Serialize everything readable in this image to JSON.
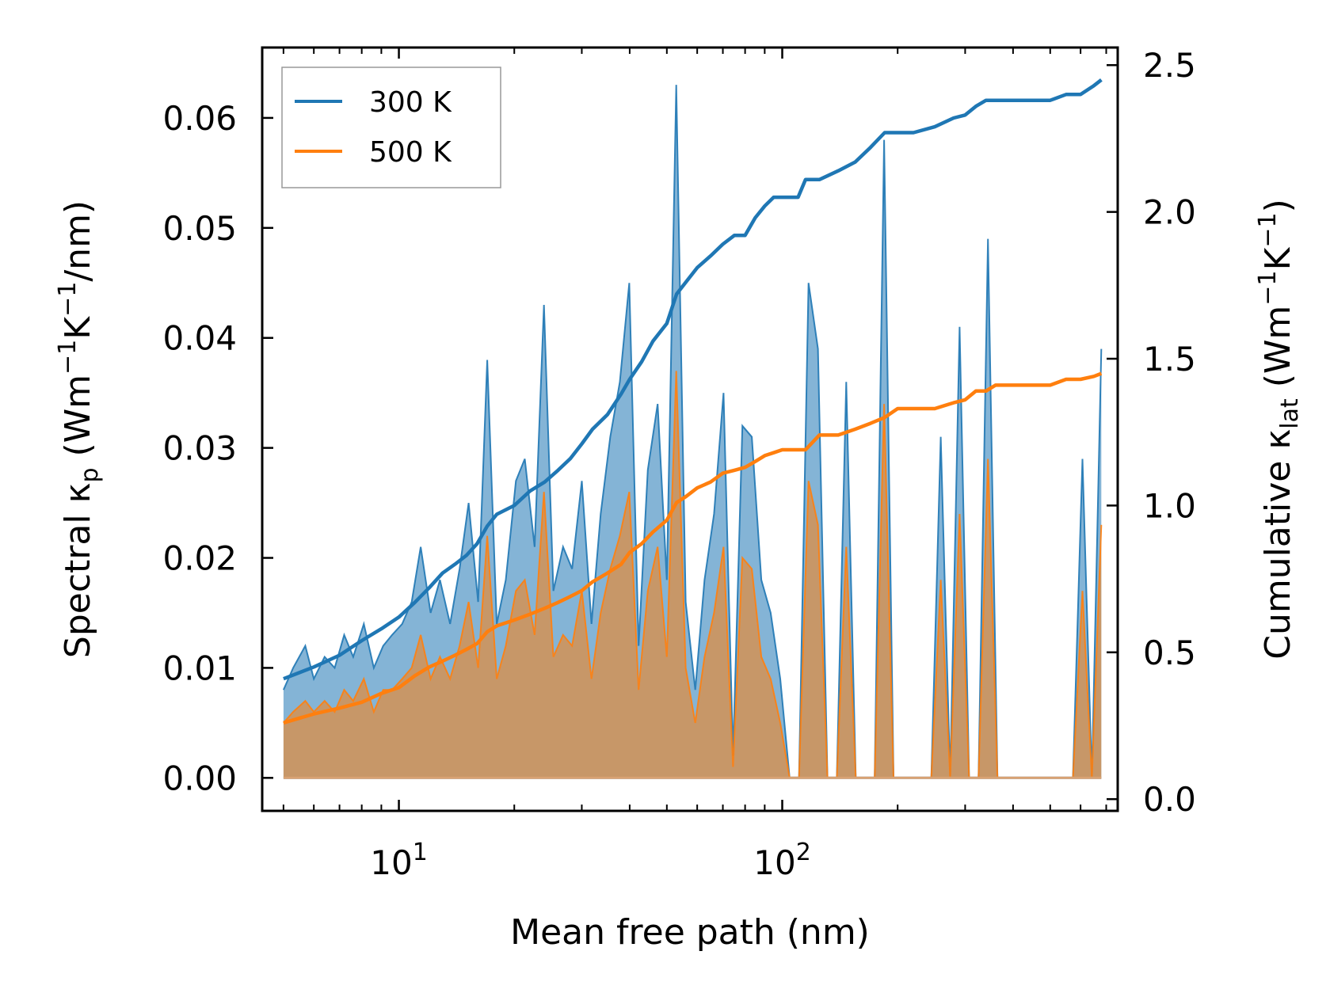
{
  "chart_data": {
    "type": "line",
    "xlabel": "Mean free path (nm)",
    "ylabel": "Spectral κp (Wm−1K−1/nm)",
    "ylabel_parts": {
      "base": "Spectral κ",
      "sub": "p",
      "unit_open": " (Wm",
      "exp1": "−1",
      "k": "K",
      "exp2": "−1",
      "unit_close": "/nm)"
    },
    "y2label": "Cumulative κlat (Wm−1K−1)",
    "y2label_parts": {
      "base": "Cumulative κ",
      "sub": "lat",
      "unit_open": " (Wm",
      "exp1": "−1",
      "k": "K",
      "exp2": "−1",
      "unit_close": ")"
    },
    "xscale": "log",
    "xlim": [
      4.4,
      750
    ],
    "ylim": [
      -0.003,
      0.0664
    ],
    "y2lim": [
      -0.04,
      2.56
    ],
    "xticks": [
      {
        "value": 10,
        "base": "10",
        "exp": "1"
      },
      {
        "value": 100,
        "base": "10",
        "exp": "2"
      }
    ],
    "yticks": [
      {
        "value": 0.0,
        "label": "0.00"
      },
      {
        "value": 0.01,
        "label": "0.01"
      },
      {
        "value": 0.02,
        "label": "0.02"
      },
      {
        "value": 0.03,
        "label": "0.03"
      },
      {
        "value": 0.04,
        "label": "0.04"
      },
      {
        "value": 0.05,
        "label": "0.05"
      },
      {
        "value": 0.06,
        "label": "0.06"
      }
    ],
    "y2ticks": [
      {
        "value": 0.0,
        "label": "0.0"
      },
      {
        "value": 0.5,
        "label": "0.5"
      },
      {
        "value": 1.0,
        "label": "1.0"
      },
      {
        "value": 1.5,
        "label": "1.5"
      },
      {
        "value": 2.0,
        "label": "2.0"
      },
      {
        "value": 2.5,
        "label": "2.5"
      }
    ],
    "legend": {
      "position": "top-left"
    },
    "series": [
      {
        "name": "300 K",
        "color": "#1f77b4",
        "spectral_mfp": [
          5.0,
          5.3,
          5.7,
          6.0,
          6.4,
          6.8,
          7.2,
          7.6,
          8.1,
          8.6,
          9.1,
          9.6,
          10.2,
          10.8,
          11.4,
          12.1,
          12.8,
          13.6,
          14.4,
          15.2,
          16.1,
          17.0,
          18.0,
          19.0,
          20.2,
          21.3,
          22.6,
          23.9,
          25.3,
          26.8,
          28.3,
          30.0,
          31.8,
          33.6,
          35.6,
          37.7,
          39.9,
          42.2,
          44.6,
          47.3,
          50.0,
          52.9,
          56.0,
          59.3,
          62.7,
          66.4,
          70.3,
          74.4,
          78.7,
          83.3,
          88.2,
          93.3,
          98.8,
          104.5,
          110.6,
          117.1,
          123.9,
          131.2,
          138.8,
          146.9,
          155.5,
          164.6,
          174.2,
          184.4,
          195.1,
          206.5,
          218.6,
          231.3,
          244.8,
          259.1,
          274.2,
          290.2,
          307.2,
          325.1,
          344.1,
          364.2,
          385.4,
          407.9,
          431.7,
          456.9,
          483.6,
          511.8,
          541.7,
          573.3,
          606.8,
          642.2,
          679.7
        ],
        "spectral": [
          0.008,
          0.01,
          0.012,
          0.009,
          0.011,
          0.01,
          0.013,
          0.011,
          0.014,
          0.01,
          0.012,
          0.013,
          0.014,
          0.016,
          0.021,
          0.015,
          0.018,
          0.014,
          0.019,
          0.025,
          0.016,
          0.038,
          0.014,
          0.018,
          0.027,
          0.029,
          0.021,
          0.043,
          0.017,
          0.021,
          0.019,
          0.027,
          0.014,
          0.024,
          0.031,
          0.036,
          0.045,
          0.012,
          0.028,
          0.034,
          0.018,
          0.063,
          0.016,
          0.008,
          0.018,
          0.024,
          0.035,
          0.002,
          0.032,
          0.031,
          0.018,
          0.015,
          0.009,
          0.0,
          0.0,
          0.045,
          0.039,
          0.0,
          0.0,
          0.036,
          0.0,
          0.0,
          0.0,
          0.058,
          0.0,
          0.0,
          0.0,
          0.0,
          0.0,
          0.031,
          0.0,
          0.041,
          0.0,
          0.0,
          0.049,
          0.0,
          0.0,
          0.0,
          0.0,
          0.0,
          0.0,
          0.0,
          0.0,
          0.0,
          0.029,
          0.0,
          0.039
        ],
        "cumulative_mfp": [
          5.0,
          6.0,
          7.0,
          8.0,
          9.0,
          10.0,
          11.0,
          12.0,
          13.0,
          14.0,
          15.0,
          16.0,
          17.0,
          18.0,
          20.0,
          22.0,
          24.0,
          26.0,
          28.0,
          30.0,
          32.0,
          35.0,
          38.0,
          40.0,
          43.0,
          46.0,
          50.0,
          53.0,
          56.0,
          60.0,
          65.0,
          70.0,
          75.0,
          80.0,
          85.0,
          90.0,
          95.0,
          100.0,
          110.0,
          115.0,
          125.0,
          140.0,
          155.0,
          170.0,
          185.0,
          200.0,
          220.0,
          250.0,
          280.0,
          300.0,
          320.0,
          340.0,
          360.0,
          400.0,
          450.0,
          500.0,
          550.0,
          600.0,
          650.0,
          680.0
        ],
        "cumulative": [
          0.41,
          0.45,
          0.49,
          0.54,
          0.58,
          0.62,
          0.67,
          0.72,
          0.77,
          0.8,
          0.83,
          0.87,
          0.93,
          0.97,
          1.0,
          1.05,
          1.08,
          1.12,
          1.16,
          1.21,
          1.26,
          1.31,
          1.38,
          1.43,
          1.49,
          1.56,
          1.62,
          1.72,
          1.76,
          1.81,
          1.85,
          1.89,
          1.92,
          1.92,
          1.98,
          2.02,
          2.05,
          2.05,
          2.05,
          2.11,
          2.11,
          2.14,
          2.17,
          2.22,
          2.27,
          2.27,
          2.27,
          2.29,
          2.32,
          2.33,
          2.36,
          2.38,
          2.38,
          2.38,
          2.38,
          2.38,
          2.4,
          2.4,
          2.43,
          2.45
        ]
      },
      {
        "name": "500 K",
        "color": "#ff7f0e",
        "spectral_mfp": [
          5.0,
          5.3,
          5.7,
          6.0,
          6.4,
          6.8,
          7.2,
          7.6,
          8.1,
          8.6,
          9.1,
          9.6,
          10.2,
          10.8,
          11.4,
          12.1,
          12.8,
          13.6,
          14.4,
          15.2,
          16.1,
          17.0,
          18.0,
          19.0,
          20.2,
          21.3,
          22.6,
          23.9,
          25.3,
          26.8,
          28.3,
          30.0,
          31.8,
          33.6,
          35.6,
          37.7,
          39.9,
          42.2,
          44.6,
          47.3,
          50.0,
          52.9,
          56.0,
          59.3,
          62.7,
          66.4,
          70.3,
          74.4,
          78.7,
          83.3,
          88.2,
          93.3,
          98.8,
          104.5,
          110.6,
          117.1,
          123.9,
          131.2,
          138.8,
          146.9,
          155.5,
          164.6,
          174.2,
          184.4,
          195.1,
          206.5,
          218.6,
          231.3,
          244.8,
          259.1,
          274.2,
          290.2,
          307.2,
          325.1,
          344.1,
          364.2,
          385.4,
          407.9,
          431.7,
          456.9,
          483.6,
          511.8,
          541.7,
          573.3,
          606.8,
          642.2,
          679.7
        ],
        "spectral": [
          0.005,
          0.006,
          0.007,
          0.006,
          0.007,
          0.006,
          0.008,
          0.007,
          0.009,
          0.006,
          0.008,
          0.008,
          0.009,
          0.01,
          0.013,
          0.009,
          0.011,
          0.009,
          0.012,
          0.016,
          0.01,
          0.022,
          0.009,
          0.012,
          0.017,
          0.018,
          0.013,
          0.026,
          0.011,
          0.013,
          0.012,
          0.017,
          0.009,
          0.015,
          0.019,
          0.022,
          0.026,
          0.008,
          0.017,
          0.021,
          0.011,
          0.037,
          0.01,
          0.005,
          0.011,
          0.015,
          0.021,
          0.001,
          0.02,
          0.019,
          0.011,
          0.009,
          0.005,
          0.0,
          0.0,
          0.027,
          0.023,
          0.0,
          0.0,
          0.021,
          0.0,
          0.0,
          0.0,
          0.034,
          0.0,
          0.0,
          0.0,
          0.0,
          0.0,
          0.018,
          0.0,
          0.024,
          0.0,
          0.0,
          0.029,
          0.0,
          0.0,
          0.0,
          0.0,
          0.0,
          0.0,
          0.0,
          0.0,
          0.0,
          0.017,
          0.0,
          0.023
        ],
        "cumulative_mfp": [
          5.0,
          6.0,
          7.0,
          8.0,
          9.0,
          10.0,
          11.0,
          12.0,
          13.0,
          14.0,
          15.0,
          16.0,
          17.0,
          18.0,
          20.0,
          22.0,
          24.0,
          26.0,
          28.0,
          30.0,
          32.0,
          35.0,
          38.0,
          40.0,
          43.0,
          46.0,
          50.0,
          53.0,
          56.0,
          60.0,
          65.0,
          70.0,
          75.0,
          80.0,
          85.0,
          90.0,
          95.0,
          100.0,
          110.0,
          115.0,
          125.0,
          140.0,
          155.0,
          170.0,
          185.0,
          200.0,
          220.0,
          250.0,
          280.0,
          300.0,
          320.0,
          340.0,
          360.0,
          400.0,
          450.0,
          500.0,
          550.0,
          600.0,
          650.0,
          680.0
        ],
        "cumulative": [
          0.26,
          0.29,
          0.31,
          0.33,
          0.36,
          0.38,
          0.42,
          0.45,
          0.47,
          0.49,
          0.51,
          0.53,
          0.57,
          0.59,
          0.61,
          0.63,
          0.65,
          0.67,
          0.69,
          0.71,
          0.74,
          0.77,
          0.8,
          0.84,
          0.87,
          0.91,
          0.95,
          1.01,
          1.03,
          1.06,
          1.08,
          1.11,
          1.12,
          1.13,
          1.15,
          1.17,
          1.18,
          1.19,
          1.19,
          1.19,
          1.24,
          1.24,
          1.26,
          1.28,
          1.3,
          1.33,
          1.33,
          1.33,
          1.35,
          1.36,
          1.39,
          1.39,
          1.41,
          1.41,
          1.41,
          1.41,
          1.43,
          1.43,
          1.44,
          1.45
        ]
      }
    ]
  }
}
